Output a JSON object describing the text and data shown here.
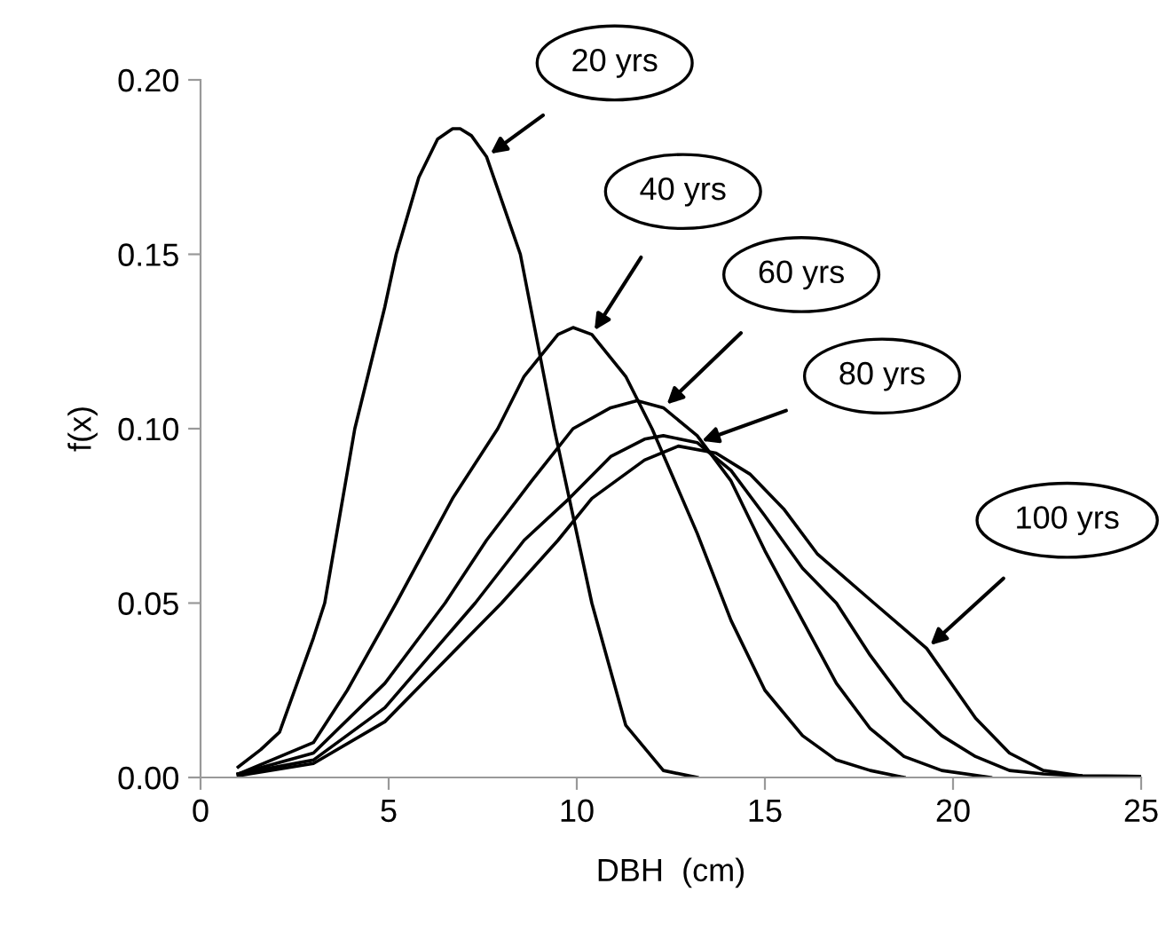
{
  "chart_data": {
    "type": "line",
    "xlabel": "DBH  (cm)",
    "ylabel": "f(x)",
    "xlim": [
      0,
      25
    ],
    "xticks": [
      0,
      5,
      10,
      15,
      20,
      25
    ],
    "ylim": [
      0,
      0.2
    ],
    "yticks": [
      {
        "value": 0,
        "label": "0.00"
      },
      {
        "value": 0.05,
        "label": "0.05"
      },
      {
        "value": 0.1,
        "label": "0.10"
      },
      {
        "value": 0.15,
        "label": "0.15"
      },
      {
        "value": 0.2,
        "label": "0.20"
      }
    ],
    "grid": false,
    "legend": false,
    "marker": "none",
    "line_style": "solid",
    "series": [
      {
        "name": "20 yrs",
        "color": "#000000",
        "x": [
          1,
          1.6,
          2.1,
          3.0,
          3.3,
          4.1,
          4.9,
          5.2,
          5.8,
          6.3,
          6.7,
          6.9,
          7.2,
          7.6,
          8.5,
          9.4,
          10.4,
          11.3,
          12.3,
          13.2
        ],
        "values": [
          0.003,
          0.008,
          0.013,
          0.04,
          0.05,
          0.1,
          0.135,
          0.15,
          0.172,
          0.183,
          0.186,
          0.186,
          0.184,
          0.178,
          0.15,
          0.1,
          0.05,
          0.015,
          0.002,
          0
        ]
      },
      {
        "name": "40 yrs",
        "color": "#000000",
        "x": [
          1,
          3.0,
          3.9,
          5.2,
          6.7,
          7.9,
          8.6,
          9.5,
          9.9,
          10.4,
          11.3,
          12.0,
          13.2,
          14.1,
          15.0,
          16.0,
          16.9,
          17.8,
          18.7
        ],
        "values": [
          0.001,
          0.01,
          0.025,
          0.05,
          0.08,
          0.1,
          0.115,
          0.127,
          0.129,
          0.127,
          0.115,
          0.1,
          0.07,
          0.045,
          0.025,
          0.012,
          0.005,
          0.002,
          0
        ]
      },
      {
        "name": "60 yrs",
        "color": "#000000",
        "x": [
          1,
          3.0,
          4.9,
          6.5,
          7.6,
          8.8,
          9.9,
          10.9,
          11.6,
          12.3,
          13.2,
          14.1,
          15.0,
          16.0,
          16.9,
          17.8,
          18.7,
          19.7,
          21.0
        ],
        "values": [
          0.001,
          0.007,
          0.027,
          0.05,
          0.068,
          0.085,
          0.1,
          0.106,
          0.108,
          0.106,
          0.098,
          0.085,
          0.065,
          0.045,
          0.027,
          0.014,
          0.006,
          0.002,
          0
        ]
      },
      {
        "name": "80 yrs",
        "color": "#000000",
        "x": [
          1,
          3.0,
          4.9,
          7.3,
          8.6,
          9.8,
          10.9,
          11.8,
          12.3,
          13.2,
          14.1,
          15.0,
          16.0,
          16.9,
          17.8,
          18.7,
          19.7,
          20.6,
          21.5,
          22.4,
          23.4
        ],
        "values": [
          0.001,
          0.005,
          0.02,
          0.05,
          0.068,
          0.08,
          0.092,
          0.097,
          0.098,
          0.096,
          0.088,
          0.075,
          0.06,
          0.05,
          0.035,
          0.022,
          0.012,
          0.006,
          0.002,
          0.001,
          0.0005
        ]
      },
      {
        "name": "100 yrs",
        "color": "#000000",
        "x": [
          1,
          3.0,
          4.9,
          8.0,
          9.5,
          10.4,
          11.8,
          12.7,
          13.7,
          14.6,
          15.5,
          16.4,
          17.9,
          19.3,
          20.6,
          21.5,
          22.4,
          23.4,
          25
        ],
        "values": [
          0.0005,
          0.004,
          0.016,
          0.05,
          0.068,
          0.08,
          0.091,
          0.095,
          0.093,
          0.087,
          0.077,
          0.064,
          0.05,
          0.037,
          0.017,
          0.007,
          0.002,
          0.0005,
          0.0003
        ]
      }
    ]
  }
}
